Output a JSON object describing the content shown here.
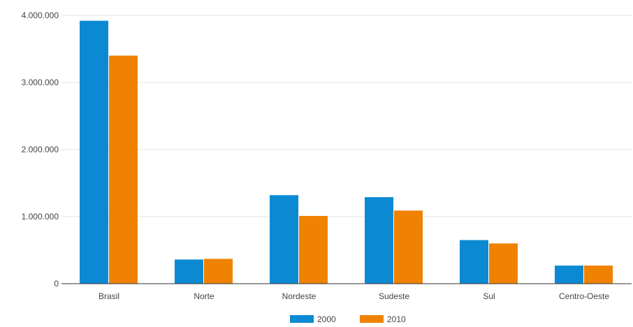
{
  "chart_data": {
    "type": "bar",
    "categories": [
      "Brasil",
      "Norte",
      "Nordeste",
      "Sudeste",
      "Sul",
      "Centro-Oeste"
    ],
    "series": [
      {
        "name": "2000",
        "color": "#0b8ad3",
        "values": [
          3920000,
          360000,
          1320000,
          1290000,
          650000,
          270000
        ]
      },
      {
        "name": "2010",
        "color": "#ef8200",
        "values": [
          3400000,
          370000,
          1010000,
          1090000,
          600000,
          270000
        ]
      }
    ],
    "y_ticks": [
      {
        "value": 0,
        "label": "0"
      },
      {
        "value": 1000000,
        "label": "1.000.000"
      },
      {
        "value": 2000000,
        "label": "2.000.000"
      },
      {
        "value": 3000000,
        "label": "3.000.000"
      },
      {
        "value": 4000000,
        "label": "4.000.000"
      }
    ],
    "ylim": [
      0,
      4000000
    ],
    "grid": true,
    "legend_position": "bottom"
  }
}
